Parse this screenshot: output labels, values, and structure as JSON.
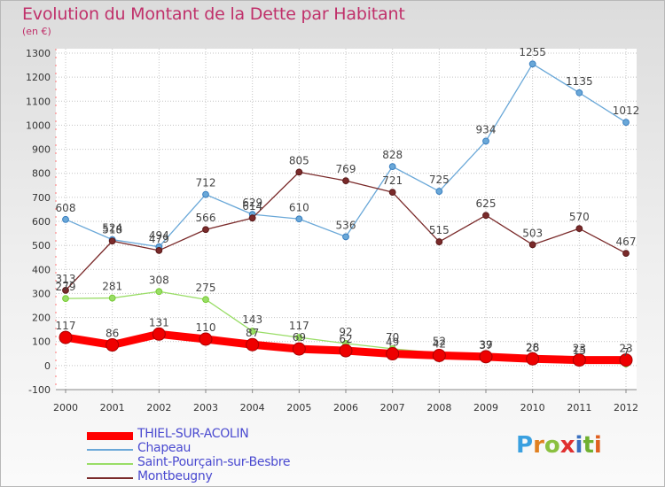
{
  "title": "Evolution du Montant de la Dette par Habitant",
  "unit": "(en €)",
  "logo_text": "Proxiti",
  "chart_data": {
    "type": "line",
    "title": "Evolution du Montant de la Dette par Habitant",
    "ylabel": "(en €)",
    "xlabel": "",
    "ylim": [
      -100,
      1300
    ],
    "yticks": [
      -100,
      0,
      100,
      200,
      300,
      400,
      500,
      600,
      700,
      800,
      900,
      1000,
      1100,
      1200,
      1300
    ],
    "categories": [
      "2000",
      "2001",
      "2002",
      "2003",
      "2004",
      "2005",
      "2006",
      "2007",
      "2008",
      "2009",
      "2010",
      "2011",
      "2012"
    ],
    "grid": true,
    "legend_position": "bottom-left",
    "series": [
      {
        "name": "THIEL-SUR-ACOLIN",
        "color": "#ff0000",
        "marker": "#cc0000",
        "bold": true,
        "values": [
          117,
          86,
          131,
          110,
          87,
          69,
          62,
          49,
          42,
          37,
          28,
          23,
          23
        ],
        "labels": [
          "117",
          "86",
          "131",
          "110",
          "87",
          "69",
          "62",
          "49",
          "42",
          "37",
          "28",
          "23",
          "23"
        ]
      },
      {
        "name": "Chapeau",
        "color": "#6aa8d8",
        "marker": "#3a7fc0",
        "bold": false,
        "values": [
          608,
          524,
          494,
          712,
          629,
          610,
          536,
          828,
          725,
          934,
          1255,
          1135,
          1012
        ],
        "labels": [
          "608",
          "524",
          "494",
          "712",
          "629",
          "610",
          "536",
          "828",
          "725",
          "934",
          "1255",
          "1135",
          "1012"
        ]
      },
      {
        "name": "Saint-Pourçain-sur-Besbre",
        "color": "#99dd66",
        "marker": "#77cc33",
        "bold": false,
        "values": [
          279,
          281,
          308,
          275,
          143,
          117,
          92,
          70,
          52,
          39,
          26,
          15,
          7
        ],
        "labels": [
          "279",
          "281",
          "308",
          "275",
          "143",
          "117",
          "92",
          "70",
          "52",
          "39",
          "26",
          "15",
          "7"
        ]
      },
      {
        "name": "Montbeugny",
        "color": "#7a2a2a",
        "marker": "#5a1a1a",
        "bold": false,
        "values": [
          313,
          518,
          479,
          566,
          614,
          805,
          769,
          721,
          515,
          625,
          503,
          570,
          467
        ],
        "labels": [
          "313",
          "518",
          "479",
          "566",
          "614",
          "805",
          "769",
          "721",
          "515",
          "625",
          "503",
          "570",
          "467"
        ]
      }
    ]
  }
}
